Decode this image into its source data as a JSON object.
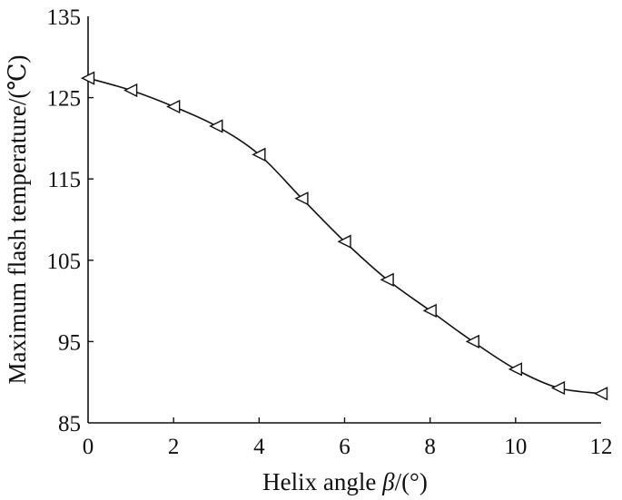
{
  "chart_data": {
    "type": "line",
    "title": "",
    "xlabel_main": "Helix angle ",
    "xlabel_symbol": "β",
    "xlabel_unit": "/(°)",
    "ylabel": "Maximum flash temperature/(℃)",
    "xlim": [
      0,
      12
    ],
    "ylim": [
      85,
      135
    ],
    "xticks": [
      "0",
      "2",
      "4",
      "6",
      "8",
      "10",
      "12"
    ],
    "yticks": [
      "85",
      "95",
      "105",
      "115",
      "125",
      "135"
    ],
    "grid": false,
    "legend": "none",
    "marker": "triangle-left",
    "line_color": "#111111",
    "series": [
      {
        "x": [
          0,
          1,
          2,
          3,
          4,
          5,
          6,
          7,
          8,
          9,
          10,
          11,
          12
        ],
        "values": [
          127.4,
          125.9,
          123.9,
          121.5,
          118.0,
          112.6,
          107.3,
          102.6,
          98.8,
          95.0,
          91.6,
          89.3,
          88.6
        ]
      }
    ]
  }
}
